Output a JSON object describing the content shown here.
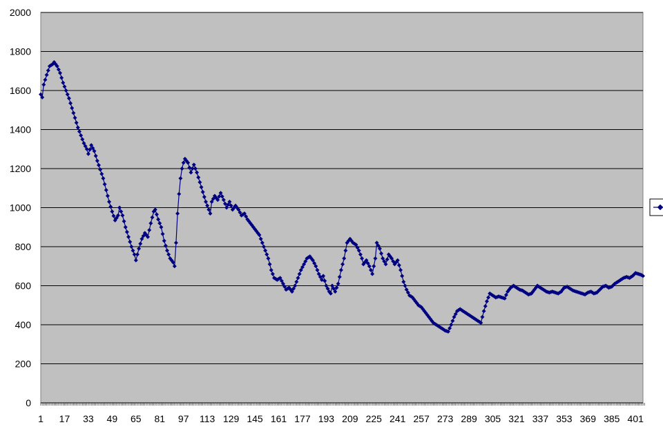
{
  "colors": {
    "plot_bg": "#c0c0c0",
    "grid": "#000000",
    "series": "#000080",
    "page_bg": "#ffffff"
  },
  "chart_data": {
    "type": "line",
    "title": "",
    "xlabel": "",
    "ylabel": "",
    "ylim": [
      0,
      2000
    ],
    "xlim": [
      1,
      406
    ],
    "y_ticks": [
      "0",
      "200",
      "400",
      "600",
      "800",
      "1000",
      "1200",
      "1400",
      "1600",
      "1800",
      "2000"
    ],
    "x_ticks": [
      "1",
      "17",
      "33",
      "49",
      "65",
      "81",
      "97",
      "113",
      "129",
      "145",
      "161",
      "177",
      "193",
      "209",
      "225",
      "241",
      "257",
      "273",
      "289",
      "305",
      "321",
      "337",
      "353",
      "369",
      "385",
      "401"
    ],
    "grid": "horizontal",
    "legend_position": "right",
    "marker": "diamond",
    "series": [
      {
        "keypoints": [
          [
            1,
            1580
          ],
          [
            2,
            1565
          ],
          [
            3,
            1630
          ],
          [
            5,
            1680
          ],
          [
            7,
            1725
          ],
          [
            9,
            1735
          ],
          [
            10,
            1745
          ],
          [
            12,
            1725
          ],
          [
            14,
            1690
          ],
          [
            16,
            1640
          ],
          [
            18,
            1600
          ],
          [
            20,
            1560
          ],
          [
            22,
            1510
          ],
          [
            24,
            1460
          ],
          [
            26,
            1410
          ],
          [
            28,
            1370
          ],
          [
            30,
            1330
          ],
          [
            32,
            1300
          ],
          [
            33,
            1275
          ],
          [
            35,
            1320
          ],
          [
            37,
            1290
          ],
          [
            39,
            1240
          ],
          [
            41,
            1195
          ],
          [
            43,
            1150
          ],
          [
            45,
            1090
          ],
          [
            47,
            1030
          ],
          [
            49,
            980
          ],
          [
            51,
            935
          ],
          [
            53,
            960
          ],
          [
            54,
            1000
          ],
          [
            56,
            960
          ],
          [
            58,
            900
          ],
          [
            60,
            850
          ],
          [
            62,
            800
          ],
          [
            64,
            760
          ],
          [
            65,
            730
          ],
          [
            67,
            790
          ],
          [
            69,
            840
          ],
          [
            71,
            870
          ],
          [
            73,
            850
          ],
          [
            75,
            920
          ],
          [
            77,
            980
          ],
          [
            78,
            990
          ],
          [
            80,
            940
          ],
          [
            82,
            900
          ],
          [
            84,
            830
          ],
          [
            86,
            780
          ],
          [
            88,
            740
          ],
          [
            90,
            720
          ],
          [
            91,
            700
          ],
          [
            92,
            820
          ],
          [
            93,
            970
          ],
          [
            94,
            1070
          ],
          [
            95,
            1150
          ],
          [
            96,
            1200
          ],
          [
            97,
            1230
          ],
          [
            98,
            1250
          ],
          [
            100,
            1230
          ],
          [
            102,
            1180
          ],
          [
            104,
            1220
          ],
          [
            106,
            1180
          ],
          [
            108,
            1130
          ],
          [
            110,
            1080
          ],
          [
            112,
            1030
          ],
          [
            114,
            990
          ],
          [
            115,
            970
          ],
          [
            116,
            1030
          ],
          [
            118,
            1060
          ],
          [
            120,
            1040
          ],
          [
            122,
            1075
          ],
          [
            124,
            1040
          ],
          [
            126,
            1000
          ],
          [
            128,
            1030
          ],
          [
            130,
            990
          ],
          [
            132,
            1010
          ],
          [
            134,
            990
          ],
          [
            136,
            960
          ],
          [
            138,
            970
          ],
          [
            140,
            940
          ],
          [
            142,
            920
          ],
          [
            144,
            900
          ],
          [
            146,
            880
          ],
          [
            148,
            860
          ],
          [
            150,
            820
          ],
          [
            152,
            780
          ],
          [
            154,
            740
          ],
          [
            156,
            680
          ],
          [
            158,
            640
          ],
          [
            160,
            630
          ],
          [
            162,
            640
          ],
          [
            164,
            610
          ],
          [
            166,
            580
          ],
          [
            168,
            590
          ],
          [
            170,
            570
          ],
          [
            172,
            600
          ],
          [
            174,
            640
          ],
          [
            176,
            680
          ],
          [
            178,
            710
          ],
          [
            180,
            740
          ],
          [
            182,
            750
          ],
          [
            184,
            730
          ],
          [
            186,
            700
          ],
          [
            188,
            660
          ],
          [
            190,
            630
          ],
          [
            191,
            650
          ],
          [
            193,
            600
          ],
          [
            195,
            570
          ],
          [
            196,
            560
          ],
          [
            197,
            600
          ],
          [
            199,
            570
          ],
          [
            201,
            610
          ],
          [
            203,
            680
          ],
          [
            205,
            740
          ],
          [
            207,
            820
          ],
          [
            209,
            840
          ],
          [
            211,
            820
          ],
          [
            213,
            810
          ],
          [
            215,
            780
          ],
          [
            217,
            740
          ],
          [
            218,
            710
          ],
          [
            220,
            730
          ],
          [
            222,
            700
          ],
          [
            224,
            660
          ],
          [
            226,
            740
          ],
          [
            227,
            820
          ],
          [
            229,
            790
          ],
          [
            231,
            740
          ],
          [
            233,
            710
          ],
          [
            235,
            760
          ],
          [
            237,
            740
          ],
          [
            239,
            710
          ],
          [
            241,
            730
          ],
          [
            243,
            680
          ],
          [
            245,
            620
          ],
          [
            247,
            580
          ],
          [
            249,
            550
          ],
          [
            251,
            540
          ],
          [
            253,
            520
          ],
          [
            255,
            500
          ],
          [
            257,
            490
          ],
          [
            259,
            470
          ],
          [
            261,
            450
          ],
          [
            263,
            430
          ],
          [
            265,
            410
          ],
          [
            267,
            400
          ],
          [
            269,
            390
          ],
          [
            271,
            380
          ],
          [
            273,
            370
          ],
          [
            275,
            365
          ],
          [
            277,
            400
          ],
          [
            279,
            440
          ],
          [
            281,
            470
          ],
          [
            283,
            480
          ],
          [
            285,
            470
          ],
          [
            287,
            460
          ],
          [
            289,
            450
          ],
          [
            291,
            440
          ],
          [
            293,
            430
          ],
          [
            295,
            420
          ],
          [
            297,
            410
          ],
          [
            299,
            470
          ],
          [
            301,
            520
          ],
          [
            303,
            560
          ],
          [
            305,
            550
          ],
          [
            307,
            540
          ],
          [
            309,
            545
          ],
          [
            311,
            540
          ],
          [
            313,
            535
          ],
          [
            315,
            570
          ],
          [
            317,
            590
          ],
          [
            319,
            600
          ],
          [
            321,
            590
          ],
          [
            323,
            580
          ],
          [
            325,
            575
          ],
          [
            327,
            565
          ],
          [
            329,
            555
          ],
          [
            331,
            560
          ],
          [
            333,
            580
          ],
          [
            335,
            600
          ],
          [
            337,
            590
          ],
          [
            339,
            580
          ],
          [
            341,
            570
          ],
          [
            343,
            565
          ],
          [
            345,
            570
          ],
          [
            347,
            565
          ],
          [
            349,
            560
          ],
          [
            351,
            570
          ],
          [
            353,
            590
          ],
          [
            355,
            595
          ],
          [
            357,
            585
          ],
          [
            359,
            575
          ],
          [
            361,
            570
          ],
          [
            363,
            565
          ],
          [
            365,
            560
          ],
          [
            367,
            555
          ],
          [
            369,
            565
          ],
          [
            371,
            570
          ],
          [
            373,
            560
          ],
          [
            375,
            565
          ],
          [
            377,
            580
          ],
          [
            379,
            595
          ],
          [
            381,
            600
          ],
          [
            383,
            590
          ],
          [
            385,
            595
          ],
          [
            387,
            610
          ],
          [
            389,
            620
          ],
          [
            391,
            630
          ],
          [
            393,
            640
          ],
          [
            395,
            645
          ],
          [
            397,
            640
          ],
          [
            399,
            650
          ],
          [
            401,
            665
          ],
          [
            403,
            660
          ],
          [
            405,
            655
          ],
          [
            406,
            650
          ]
        ]
      }
    ]
  }
}
